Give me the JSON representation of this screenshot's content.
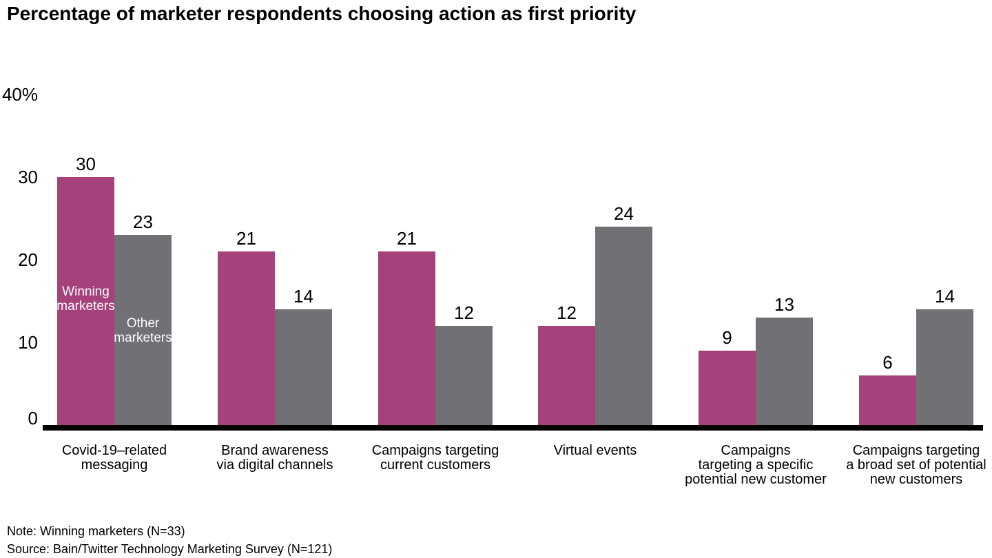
{
  "title": "Percentage of marketer respondents choosing action as first priority",
  "chart_data": {
    "type": "bar",
    "title": "Percentage of marketer respondents choosing action as first priority",
    "categories": [
      "Covid-19–related\nmessaging",
      "Brand awareness\nvia digital channels",
      "Campaigns targeting\ncurrent customers",
      "Virtual events",
      "Campaigns\ntargeting a specific\npotential new customer",
      "Campaigns targeting\na broad set of potential\nnew customers"
    ],
    "series": [
      {
        "name": "Winning marketers",
        "color": "#A5417B",
        "values": [
          30,
          21,
          21,
          12,
          9,
          6
        ],
        "inside_label": "Winning\nmarketers"
      },
      {
        "name": "Other marketers",
        "color": "#707075",
        "values": [
          23,
          14,
          12,
          24,
          13,
          14
        ],
        "inside_label": "Other\nmarketers"
      }
    ],
    "ylim": [
      0,
      40
    ],
    "yticks": [
      {
        "label": "40%",
        "value": 40
      },
      {
        "label": "30",
        "value": 30
      },
      {
        "label": "20",
        "value": 20
      },
      {
        "label": "10",
        "value": 10
      },
      {
        "label": "0",
        "value": 0
      }
    ],
    "grid": false,
    "value_labels": true,
    "legend_position": "inside-first-group",
    "axis_color": "#000000",
    "text_color": "#000000"
  },
  "notes": {
    "note": "Note: Winning marketers (N=33)",
    "source": "Source: Bain/Twitter Technology Marketing Survey (N=121)"
  }
}
